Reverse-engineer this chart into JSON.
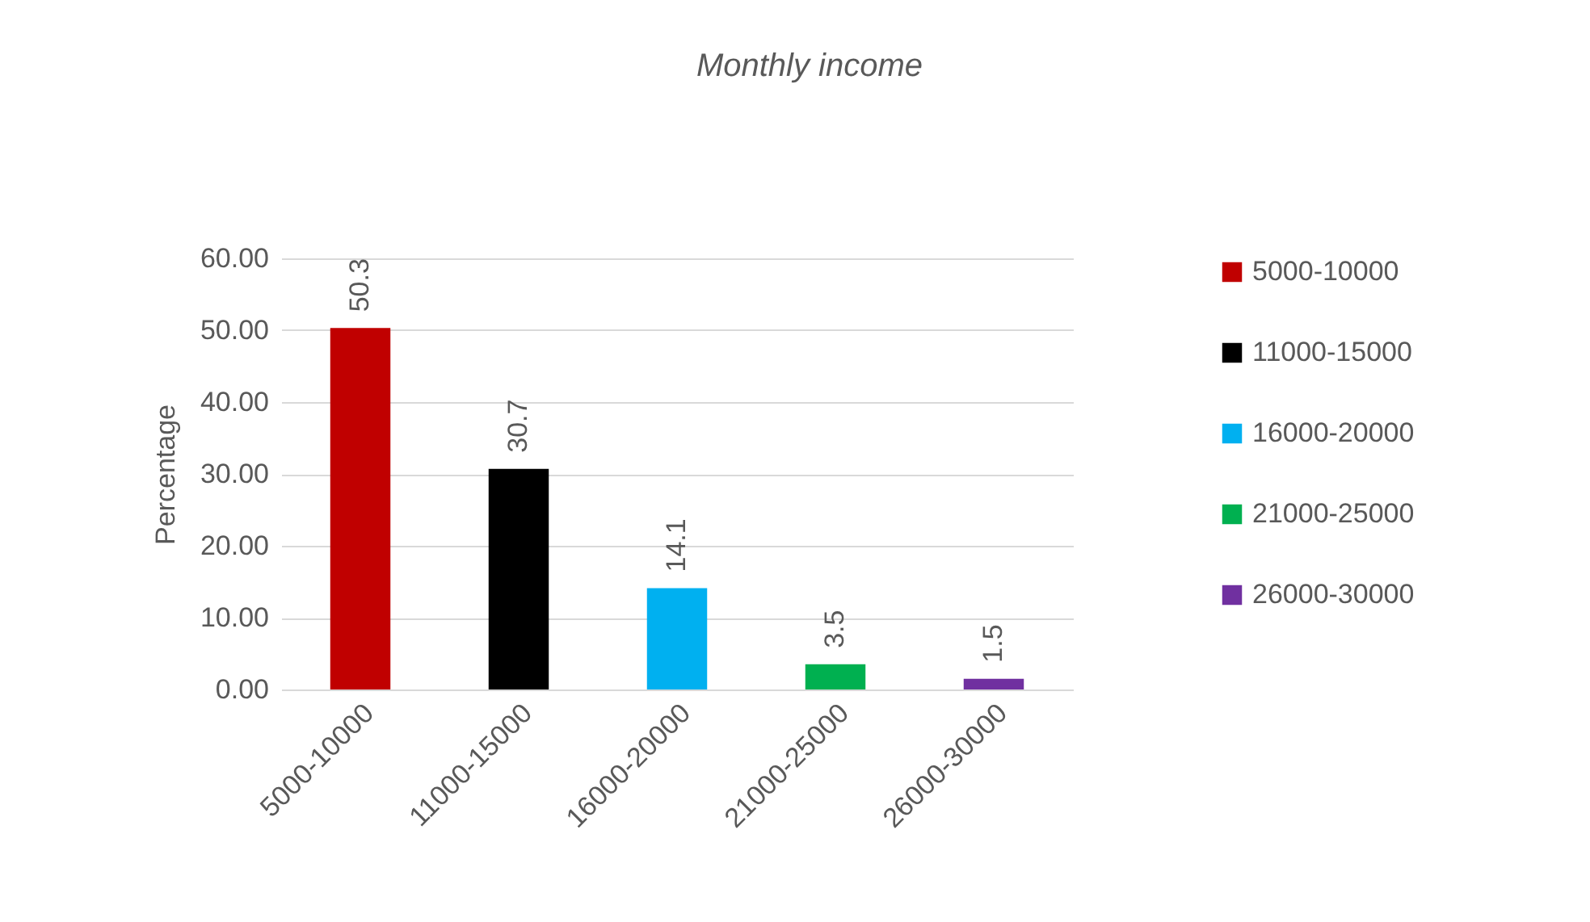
{
  "chart_data": {
    "type": "bar",
    "title": "Monthly income",
    "ylabel": "Percentage",
    "categories": [
      "5000-10000",
      "11000-15000",
      "16000-20000",
      "21000-25000",
      "26000-30000"
    ],
    "series": [
      {
        "name": "5000-10000",
        "color": "#c00000",
        "values": [
          50.3,
          null,
          null,
          null,
          null
        ]
      },
      {
        "name": "11000-15000",
        "color": "#000000",
        "values": [
          null,
          30.7,
          null,
          null,
          null
        ]
      },
      {
        "name": "16000-20000",
        "color": "#00b0f0",
        "values": [
          null,
          null,
          14.1,
          null,
          null
        ]
      },
      {
        "name": "21000-25000",
        "color": "#00b050",
        "values": [
          null,
          null,
          null,
          3.5,
          null
        ]
      },
      {
        "name": "26000-30000",
        "color": "#7030a0",
        "values": [
          null,
          null,
          null,
          null,
          1.5
        ]
      }
    ],
    "stacked": true,
    "ylim": [
      0,
      60
    ],
    "yticks": [
      {
        "value": 0,
        "label": "0.00"
      },
      {
        "value": 10,
        "label": "10.00"
      },
      {
        "value": 20,
        "label": "20.00"
      },
      {
        "value": 30,
        "label": "30.00"
      },
      {
        "value": 40,
        "label": "40.00"
      },
      {
        "value": 50,
        "label": "50.00"
      },
      {
        "value": 60,
        "label": "60.00"
      }
    ],
    "grid": "y",
    "legend": "right",
    "data_labels": true
  }
}
